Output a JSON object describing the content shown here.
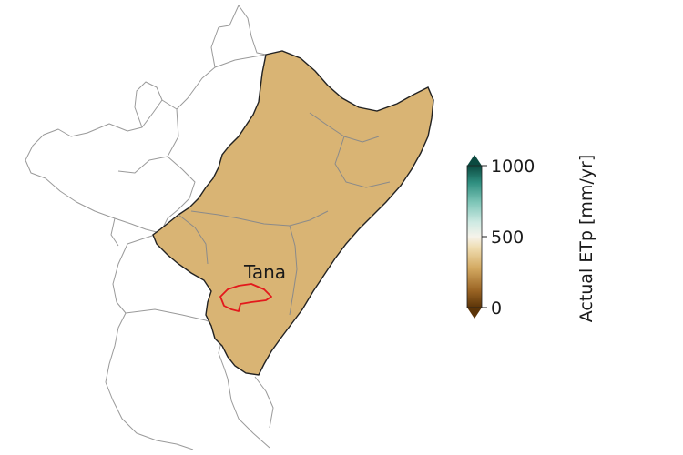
{
  "map": {
    "region_label": "Tana",
    "colors": {
      "low": "#8c5a1c",
      "mid_low": "#d9b26a",
      "mid": "#f3ecdc",
      "mid_high": "#7fcbc0",
      "high": "#0f5c52",
      "boundary": "#9a9a9a",
      "coast": "#222222",
      "basin": "#e3191c"
    }
  },
  "colorbar": {
    "label": "Actual ETp [mm/yr]",
    "ticks": [
      {
        "value": 1000,
        "label": "1000"
      },
      {
        "value": 500,
        "label": "500"
      },
      {
        "value": 0,
        "label": "0"
      }
    ],
    "min": 0,
    "max": 1000,
    "extend": "both"
  }
}
